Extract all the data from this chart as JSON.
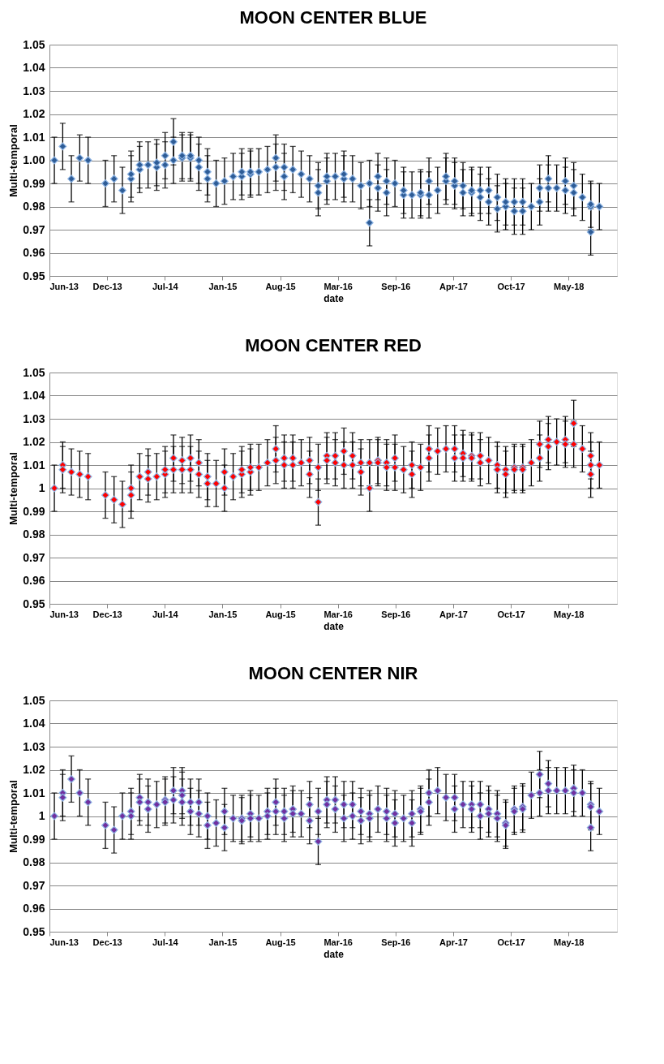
{
  "chart_data": [
    {
      "type": "scatter",
      "title": "MOON CENTER BLUE",
      "xlabel": "date",
      "ylabel": "Multi-temporal",
      "marker": "diamond",
      "grid": "y",
      "ylim": [
        0.95,
        1.05
      ],
      "yticks": [
        0.95,
        0.96,
        0.97,
        0.98,
        0.99,
        {
          "value": 1,
          "label": "1.00"
        },
        1.01,
        1.02,
        1.03,
        1.04,
        1.05
      ],
      "xlim": [
        "2013-06-06",
        "2018-10-26"
      ],
      "xticks": [
        {
          "value": "2013-06-06",
          "label": "Jun-13"
        },
        {
          "value": "2013-12-23",
          "label": "Dec-13"
        },
        {
          "value": "2014-07-11",
          "label": "Jul-14"
        },
        {
          "value": "2015-01-27",
          "label": "Jan-15"
        },
        {
          "value": "2015-08-15",
          "label": "Aug-15"
        },
        {
          "value": "2016-03-02",
          "label": "Mar-16"
        },
        {
          "value": "2016-09-18",
          "label": "Sep-16"
        },
        {
          "value": "2017-04-06",
          "label": "Apr-17"
        },
        {
          "value": "2017-10-23",
          "label": "Oct-17"
        },
        {
          "value": "2018-05-11",
          "label": "May-18"
        }
      ],
      "x": [
        "2013-06-23",
        "2013-07-22",
        "2013-08-21",
        "2013-09-19",
        "2013-10-18",
        "2013-12-17",
        "2014-01-16",
        "2014-02-14",
        "2014-03-16",
        "2014-03-16",
        "2014-04-15",
        "2014-04-15",
        "2014-05-14",
        "2014-06-13",
        "2014-06-13",
        "2014-07-12",
        "2014-07-12",
        "2014-08-10",
        "2014-08-10",
        "2014-09-09",
        "2014-09-09",
        "2014-10-08",
        "2014-10-08",
        "2014-11-06",
        "2014-11-06",
        "2014-12-06",
        "2014-12-06",
        "2015-01-05",
        "2015-02-03",
        "2015-03-05",
        "2015-04-04",
        "2015-04-04",
        "2015-05-04",
        "2015-05-04",
        "2015-06-02",
        "2015-07-02",
        "2015-07-31",
        "2015-07-31",
        "2015-08-29",
        "2015-08-29",
        "2015-09-28",
        "2015-10-27",
        "2015-11-25",
        "2015-12-25",
        "2015-12-25",
        "2016-01-24",
        "2016-01-24",
        "2016-02-22",
        "2016-03-23",
        "2016-03-23",
        "2016-04-22",
        "2016-05-21",
        "2016-06-20",
        "2016-06-20",
        "2016-07-19",
        "2016-07-19",
        "2016-08-18",
        "2016-08-18",
        "2016-09-16",
        "2016-10-16",
        "2016-10-16",
        "2016-11-14",
        "2016-12-14",
        "2016-12-14",
        "2017-01-12",
        "2017-01-12",
        "2017-02-11",
        "2017-03-12",
        "2017-03-12",
        "2017-04-11",
        "2017-04-11",
        "2017-05-10",
        "2017-05-10",
        "2017-06-09",
        "2017-06-09",
        "2017-07-09",
        "2017-07-09",
        "2017-08-07",
        "2017-08-07",
        "2017-09-06",
        "2017-09-06",
        "2017-10-05",
        "2017-10-05",
        "2017-11-04",
        "2017-11-04",
        "2017-12-03",
        "2017-12-03",
        "2018-01-02",
        "2018-01-31",
        "2018-01-31",
        "2018-03-02",
        "2018-03-02",
        "2018-03-31",
        "2018-04-30",
        "2018-04-30",
        "2018-05-29",
        "2018-05-29",
        "2018-06-28",
        "2018-07-27",
        "2018-07-27",
        "2018-07-27",
        "2018-08-26"
      ],
      "series": [
        {
          "color": "#2e5c96",
          "values": [
            1.0,
            1.006,
            0.992,
            1.001,
            1.0,
            0.99,
            0.992,
            0.987,
            0.992,
            0.994,
            0.996,
            0.998,
            0.998,
            0.997,
            0.999,
            0.998,
            1.002,
            1.0,
            1.008,
            1.001,
            1.002,
            1.001,
            1.002,
            0.997,
            1.0,
            0.992,
            0.995,
            0.99,
            0.991,
            0.993,
            0.993,
            0.995,
            0.994,
            0.995,
            0.995,
            0.996,
            0.997,
            1.001,
            0.993,
            0.997,
            0.996,
            0.994,
            0.992,
            0.986,
            0.989,
            0.991,
            0.993,
            0.993,
            0.992,
            0.994,
            0.992,
            0.989,
            0.973,
            0.99,
            0.988,
            0.993,
            0.986,
            0.991,
            0.99,
            0.985,
            0.987,
            0.985,
            0.985,
            0.986,
            0.985,
            0.991,
            0.987,
            0.991,
            0.993,
            0.989,
            0.991,
            0.986,
            0.989,
            0.986,
            0.987,
            0.984,
            0.987,
            0.982,
            0.987,
            0.979,
            0.984,
            0.98,
            0.982,
            0.978,
            0.982,
            0.978,
            0.982,
            0.98,
            0.982,
            0.988,
            0.988,
            0.992,
            0.988,
            0.987,
            0.991,
            0.986,
            0.989,
            0.984,
            0.969,
            0.98,
            0.981,
            0.98
          ],
          "errors": [
            0.01,
            0.01,
            0.01,
            0.01,
            0.01,
            0.01,
            0.01,
            0.01,
            0.01,
            0.01,
            0.01,
            0.01,
            0.01,
            0.01,
            0.01,
            0.01,
            0.01,
            0.01,
            0.01,
            0.01,
            0.01,
            0.01,
            0.01,
            0.01,
            0.01,
            0.01,
            0.01,
            0.01,
            0.01,
            0.01,
            0.01,
            0.01,
            0.01,
            0.01,
            0.01,
            0.01,
            0.01,
            0.01,
            0.01,
            0.01,
            0.01,
            0.01,
            0.01,
            0.01,
            0.01,
            0.01,
            0.01,
            0.01,
            0.01,
            0.01,
            0.01,
            0.01,
            0.01,
            0.01,
            0.01,
            0.01,
            0.01,
            0.01,
            0.01,
            0.01,
            0.01,
            0.01,
            0.01,
            0.01,
            0.01,
            0.01,
            0.01,
            0.01,
            0.01,
            0.01,
            0.01,
            0.01,
            0.01,
            0.01,
            0.01,
            0.01,
            0.01,
            0.01,
            0.01,
            0.01,
            0.01,
            0.01,
            0.01,
            0.01,
            0.01,
            0.01,
            0.01,
            0.01,
            0.01,
            0.01,
            0.01,
            0.01,
            0.01,
            0.01,
            0.01,
            0.01,
            0.01,
            0.01,
            0.01,
            0.01,
            0.01,
            0.01
          ]
        }
      ]
    },
    {
      "type": "scatter",
      "title": "MOON CENTER RED",
      "xlabel": "date",
      "ylabel": "Multi-temporal",
      "marker": "diamond",
      "grid": "y",
      "ylim": [
        0.95,
        1.05
      ],
      "yticks": [
        0.95,
        0.96,
        0.97,
        0.98,
        0.99,
        1,
        1.01,
        1.02,
        1.03,
        1.04,
        1.05
      ],
      "xlim": [
        "2013-06-06",
        "2018-10-26"
      ],
      "xticks": [
        {
          "value": "2013-06-06",
          "label": "Jun-13"
        },
        {
          "value": "2013-12-23",
          "label": "Dec-13"
        },
        {
          "value": "2014-07-11",
          "label": "Jul-14"
        },
        {
          "value": "2015-01-27",
          "label": "Jan-15"
        },
        {
          "value": "2015-08-15",
          "label": "Aug-15"
        },
        {
          "value": "2016-03-02",
          "label": "Mar-16"
        },
        {
          "value": "2016-09-18",
          "label": "Sep-16"
        },
        {
          "value": "2017-04-06",
          "label": "Apr-17"
        },
        {
          "value": "2017-10-23",
          "label": "Oct-17"
        },
        {
          "value": "2018-05-11",
          "label": "May-18"
        }
      ],
      "x": [
        "2013-06-23",
        "2013-07-22",
        "2013-07-22",
        "2013-08-21",
        "2013-09-19",
        "2013-10-18",
        "2013-12-17",
        "2014-01-16",
        "2014-02-14",
        "2014-03-16",
        "2014-03-16",
        "2014-04-15",
        "2014-05-14",
        "2014-05-14",
        "2014-06-13",
        "2014-07-12",
        "2014-07-12",
        "2014-08-10",
        "2014-08-10",
        "2014-09-09",
        "2014-09-09",
        "2014-10-08",
        "2014-10-08",
        "2014-11-06",
        "2014-11-06",
        "2014-12-06",
        "2014-12-06",
        "2015-01-05",
        "2015-02-03",
        "2015-02-03",
        "2015-03-05",
        "2015-04-04",
        "2015-04-04",
        "2015-05-04",
        "2015-05-04",
        "2015-06-02",
        "2015-07-02",
        "2015-07-31",
        "2015-07-31",
        "2015-08-29",
        "2015-08-29",
        "2015-09-28",
        "2015-09-28",
        "2015-10-27",
        "2015-11-25",
        "2015-11-25",
        "2015-12-25",
        "2015-12-25",
        "2016-01-24",
        "2016-01-24",
        "2016-02-22",
        "2016-02-22",
        "2016-03-23",
        "2016-03-23",
        "2016-04-22",
        "2016-04-22",
        "2016-05-21",
        "2016-05-21",
        "2016-06-20",
        "2016-06-20",
        "2016-07-19",
        "2016-07-19",
        "2016-08-18",
        "2016-08-18",
        "2016-09-16",
        "2016-09-16",
        "2016-10-16",
        "2016-11-14",
        "2016-11-14",
        "2016-12-14",
        "2017-01-12",
        "2017-01-12",
        "2017-02-11",
        "2017-03-12",
        "2017-04-11",
        "2017-04-11",
        "2017-05-10",
        "2017-05-10",
        "2017-06-09",
        "2017-06-09",
        "2017-07-09",
        "2017-07-09",
        "2017-08-07",
        "2017-09-06",
        "2017-09-06",
        "2017-10-05",
        "2017-10-05",
        "2017-11-04",
        "2017-11-04",
        "2017-12-03",
        "2017-12-03",
        "2018-01-02",
        "2018-01-31",
        "2018-01-31",
        "2018-03-02",
        "2018-03-02",
        "2018-03-31",
        "2018-04-30",
        "2018-04-30",
        "2018-05-29",
        "2018-05-29",
        "2018-06-28",
        "2018-07-27",
        "2018-07-27",
        "2018-07-27",
        "2018-08-26"
      ],
      "series": [
        {
          "color": "#ff0000",
          "values": [
            1.0,
            1.01,
            1.008,
            1.007,
            1.006,
            1.005,
            0.997,
            0.995,
            0.993,
            1.0,
            0.997,
            1.005,
            1.007,
            1.004,
            1.005,
            1.006,
            1.008,
            1.008,
            1.013,
            1.008,
            1.012,
            1.008,
            1.013,
            1.006,
            1.011,
            1.005,
            1.002,
            1.002,
            1.0,
            1.007,
            1.005,
            1.006,
            1.008,
            1.007,
            1.009,
            1.009,
            1.011,
            1.017,
            1.012,
            1.013,
            1.01,
            1.013,
            1.01,
            1.011,
            1.012,
            1.006,
            0.994,
            1.009,
            1.014,
            1.012,
            1.014,
            1.011,
            1.016,
            1.01,
            1.014,
            1.01,
            1.011,
            1.007,
            1.011,
            1.0,
            1.012,
            1.011,
            1.011,
            1.009,
            1.013,
            1.009,
            1.008,
            1.01,
            1.006,
            1.009,
            1.017,
            1.013,
            1.016,
            1.017,
            1.017,
            1.013,
            1.015,
            1.013,
            1.014,
            1.013,
            1.014,
            1.011,
            1.012,
            1.01,
            1.008,
            1.008,
            1.006,
            1.009,
            1.008,
            1.009,
            1.008,
            1.011,
            1.019,
            1.013,
            1.021,
            1.018,
            1.02,
            1.021,
            1.019,
            1.028,
            1.019,
            1.017,
            1.014,
            1.01,
            1.006,
            1.01
          ],
          "errors": [
            0.01,
            0.01,
            0.01,
            0.01,
            0.01,
            0.01,
            0.01,
            0.01,
            0.01,
            0.01,
            0.01,
            0.01,
            0.01,
            0.01,
            0.01,
            0.01,
            0.01,
            0.01,
            0.01,
            0.01,
            0.01,
            0.01,
            0.01,
            0.01,
            0.01,
            0.01,
            0.01,
            0.01,
            0.01,
            0.01,
            0.01,
            0.01,
            0.01,
            0.01,
            0.01,
            0.01,
            0.01,
            0.01,
            0.01,
            0.01,
            0.01,
            0.01,
            0.01,
            0.01,
            0.01,
            0.01,
            0.01,
            0.01,
            0.01,
            0.01,
            0.01,
            0.01,
            0.01,
            0.01,
            0.01,
            0.01,
            0.01,
            0.01,
            0.01,
            0.01,
            0.01,
            0.01,
            0.01,
            0.01,
            0.01,
            0.01,
            0.01,
            0.01,
            0.01,
            0.01,
            0.01,
            0.01,
            0.01,
            0.01,
            0.01,
            0.01,
            0.01,
            0.01,
            0.01,
            0.01,
            0.01,
            0.01,
            0.01,
            0.01,
            0.01,
            0.01,
            0.01,
            0.01,
            0.01,
            0.01,
            0.01,
            0.01,
            0.01,
            0.01,
            0.01,
            0.01,
            0.01,
            0.01,
            0.01,
            0.01,
            0.01,
            0.01,
            0.01,
            0.01,
            0.01,
            0.01
          ]
        }
      ]
    },
    {
      "type": "scatter",
      "title": "MOON CENTER NIR",
      "xlabel": "date",
      "ylabel": "Multi-temporal",
      "marker": "diamond",
      "grid": "y",
      "ylim": [
        0.95,
        1.05
      ],
      "yticks": [
        0.95,
        0.96,
        0.97,
        0.98,
        0.99,
        1,
        1.01,
        1.02,
        1.03,
        1.04,
        1.05
      ],
      "xlim": [
        "2013-06-06",
        "2018-10-26"
      ],
      "xticks": [
        {
          "value": "2013-06-06",
          "label": "Jun-13"
        },
        {
          "value": "2013-12-23",
          "label": "Dec-13"
        },
        {
          "value": "2014-07-11",
          "label": "Jul-14"
        },
        {
          "value": "2015-01-27",
          "label": "Jan-15"
        },
        {
          "value": "2015-08-15",
          "label": "Aug-15"
        },
        {
          "value": "2016-03-02",
          "label": "Mar-16"
        },
        {
          "value": "2016-09-18",
          "label": "Sep-16"
        },
        {
          "value": "2017-04-06",
          "label": "Apr-17"
        },
        {
          "value": "2017-10-23",
          "label": "Oct-17"
        },
        {
          "value": "2018-05-11",
          "label": "May-18"
        }
      ],
      "x": [
        "2013-06-23",
        "2013-07-22",
        "2013-07-22",
        "2013-08-21",
        "2013-09-19",
        "2013-10-18",
        "2013-12-17",
        "2014-01-16",
        "2014-02-14",
        "2014-03-16",
        "2014-03-16",
        "2014-04-15",
        "2014-04-15",
        "2014-05-14",
        "2014-05-14",
        "2014-06-13",
        "2014-07-12",
        "2014-07-12",
        "2014-08-10",
        "2014-08-10",
        "2014-09-09",
        "2014-09-09",
        "2014-09-09",
        "2014-10-08",
        "2014-10-08",
        "2014-11-06",
        "2014-11-06",
        "2014-12-06",
        "2014-12-06",
        "2015-01-05",
        "2015-02-03",
        "2015-02-03",
        "2015-03-05",
        "2015-04-04",
        "2015-04-04",
        "2015-05-04",
        "2015-05-04",
        "2015-06-02",
        "2015-07-02",
        "2015-07-02",
        "2015-07-31",
        "2015-07-31",
        "2015-08-29",
        "2015-08-29",
        "2015-09-28",
        "2015-09-28",
        "2015-10-27",
        "2015-11-25",
        "2015-11-25",
        "2015-12-25",
        "2015-12-25",
        "2016-01-24",
        "2016-01-24",
        "2016-02-22",
        "2016-02-22",
        "2016-03-23",
        "2016-03-23",
        "2016-04-22",
        "2016-04-22",
        "2016-05-21",
        "2016-05-21",
        "2016-06-20",
        "2016-06-20",
        "2016-07-19",
        "2016-08-18",
        "2016-08-18",
        "2016-09-16",
        "2016-09-16",
        "2016-10-16",
        "2016-11-14",
        "2016-11-14",
        "2016-12-14",
        "2016-12-14",
        "2017-01-12",
        "2017-01-12",
        "2017-02-11",
        "2017-03-12",
        "2017-04-11",
        "2017-04-11",
        "2017-05-10",
        "2017-06-09",
        "2017-06-09",
        "2017-07-09",
        "2017-07-09",
        "2017-08-07",
        "2017-08-07",
        "2017-09-06",
        "2017-09-06",
        "2017-10-05",
        "2017-10-05",
        "2017-11-04",
        "2017-11-04",
        "2017-12-03",
        "2017-12-03",
        "2018-01-02",
        "2018-01-31",
        "2018-01-31",
        "2018-03-02",
        "2018-03-02",
        "2018-03-31",
        "2018-04-30",
        "2018-05-29",
        "2018-05-29",
        "2018-06-28",
        "2018-07-27",
        "2018-07-27",
        "2018-07-27",
        "2018-08-26"
      ],
      "series": [
        {
          "color": "#7030a0",
          "values": [
            1.0,
            1.01,
            1.008,
            1.016,
            1.01,
            1.006,
            0.996,
            0.994,
            1.0,
            1.002,
            1.0,
            1.008,
            1.006,
            1.006,
            1.003,
            1.005,
            1.007,
            1.006,
            1.011,
            1.007,
            1.011,
            1.009,
            1.006,
            1.006,
            1.002,
            1.006,
            1.001,
            1.0,
            0.996,
            0.997,
            1.002,
            0.995,
            0.999,
            0.999,
            0.998,
            1.001,
            0.999,
            0.999,
            1.002,
            1.0,
            1.006,
            1.002,
            1.002,
            0.999,
            1.003,
            1.001,
            1.001,
            1.005,
            0.998,
            1.002,
            0.989,
            1.007,
            1.005,
            1.007,
            1.003,
            1.005,
            0.999,
            1.005,
            1.0,
            1.002,
            0.998,
            1.001,
            0.999,
            1.003,
            1.002,
            0.999,
            1.001,
            0.997,
            0.999,
            1.001,
            0.997,
            1.003,
            1.002,
            1.01,
            1.006,
            1.011,
            1.008,
            1.008,
            1.003,
            1.005,
            1.005,
            1.003,
            1.005,
            1.0,
            1.003,
            1.001,
            1.001,
            0.999,
            0.997,
            0.996,
            1.003,
            1.002,
            1.004,
            1.003,
            1.009,
            1.018,
            1.01,
            1.014,
            1.011,
            1.011,
            1.011,
            1.012,
            1.01,
            1.01,
            1.005,
            1.004,
            0.995,
            1.002
          ],
          "errors": [
            0.01,
            0.01,
            0.01,
            0.01,
            0.01,
            0.01,
            0.01,
            0.01,
            0.01,
            0.01,
            0.01,
            0.01,
            0.01,
            0.01,
            0.01,
            0.01,
            0.01,
            0.01,
            0.01,
            0.01,
            0.01,
            0.01,
            0.01,
            0.01,
            0.01,
            0.01,
            0.01,
            0.01,
            0.01,
            0.01,
            0.01,
            0.01,
            0.01,
            0.01,
            0.01,
            0.01,
            0.01,
            0.01,
            0.01,
            0.01,
            0.01,
            0.01,
            0.01,
            0.01,
            0.01,
            0.01,
            0.01,
            0.01,
            0.01,
            0.01,
            0.01,
            0.01,
            0.01,
            0.01,
            0.01,
            0.01,
            0.01,
            0.01,
            0.01,
            0.01,
            0.01,
            0.01,
            0.01,
            0.01,
            0.01,
            0.01,
            0.01,
            0.01,
            0.01,
            0.01,
            0.01,
            0.01,
            0.01,
            0.01,
            0.01,
            0.01,
            0.01,
            0.01,
            0.01,
            0.01,
            0.01,
            0.01,
            0.01,
            0.01,
            0.01,
            0.01,
            0.01,
            0.01,
            0.01,
            0.01,
            0.01,
            0.01,
            0.01,
            0.01,
            0.01,
            0.01,
            0.01,
            0.01,
            0.01,
            0.01,
            0.01,
            0.01,
            0.01,
            0.01,
            0.01,
            0.01,
            0.01,
            0.01
          ]
        }
      ]
    }
  ]
}
